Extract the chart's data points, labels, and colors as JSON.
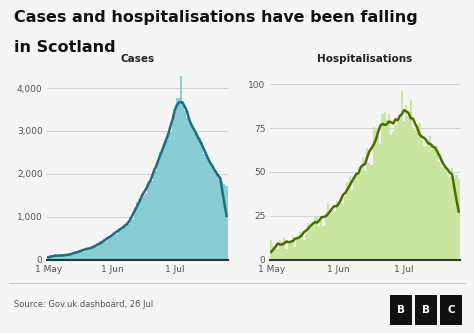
{
  "title_line1": "Cases and hospitalisations have been falling",
  "title_line2": "in Scotland",
  "title_fontsize": 11.5,
  "subtitle_cases": "Cases",
  "subtitle_hosp": "Hospitalisations",
  "source_text": "Source: Gov.uk dashboard, 26 Jul",
  "bg_color": "#f5f5f5",
  "cases_bar_color": "#88cdd4",
  "cases_line_color": "#1a6e80",
  "hosp_bar_color": "#c8e6a0",
  "hosp_line_color": "#4a6e00",
  "cases_yticks": [
    0,
    1000,
    2000,
    3000,
    4000
  ],
  "cases_ytick_labels": [
    "0",
    "1,000",
    "2,000",
    "3,000",
    "4,000"
  ],
  "hosp_yticks": [
    0,
    25,
    50,
    75,
    100
  ],
  "hosp_ytick_labels": [
    "0",
    "25",
    "50",
    "75",
    "100"
  ],
  "xtick_labels": [
    "1 May",
    "1 Jun",
    "1 Jul"
  ],
  "cases_ylim": [
    0,
    4500
  ],
  "hosp_ylim": [
    0,
    110
  ],
  "n_days": 87,
  "xtick_pos": [
    0,
    31,
    61
  ]
}
